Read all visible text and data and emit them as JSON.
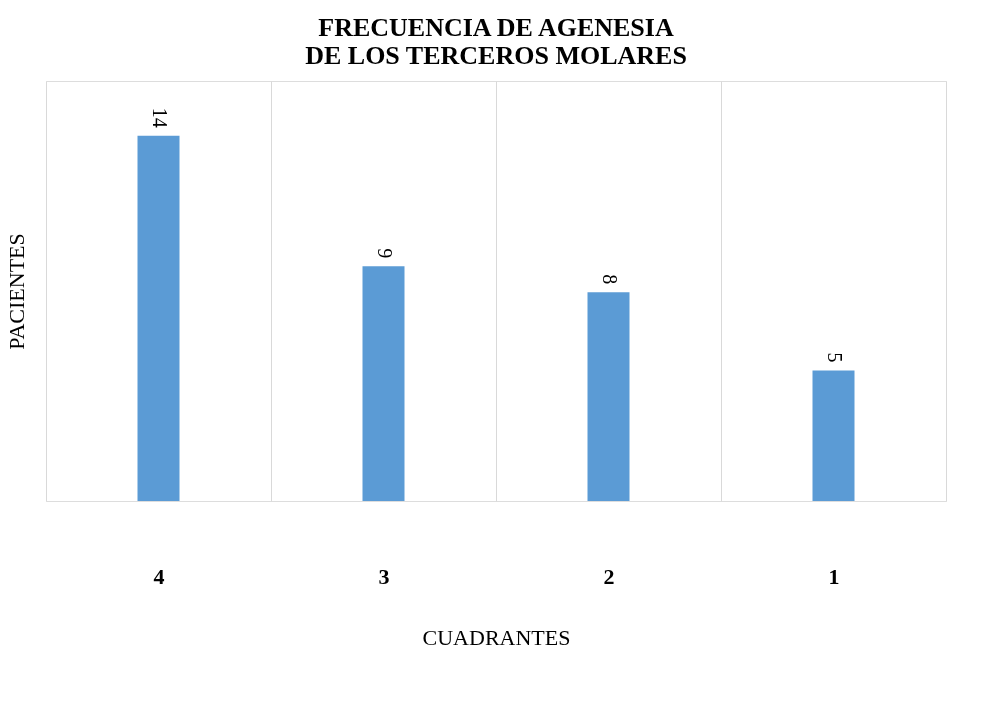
{
  "chart_data": {
    "type": "bar",
    "title": "FRECUENCIA DE AGENESIA DE LOS TERCEROS MOLARES",
    "xlabel": "CUADRANTES",
    "ylabel": "PACIENTES",
    "categories": [
      "4",
      "3",
      "2",
      "1"
    ],
    "values": [
      14,
      9,
      8,
      5
    ],
    "color": "#5b9bd5",
    "tick_labels": "x",
    "data_labels": true,
    "grid": "x"
  }
}
